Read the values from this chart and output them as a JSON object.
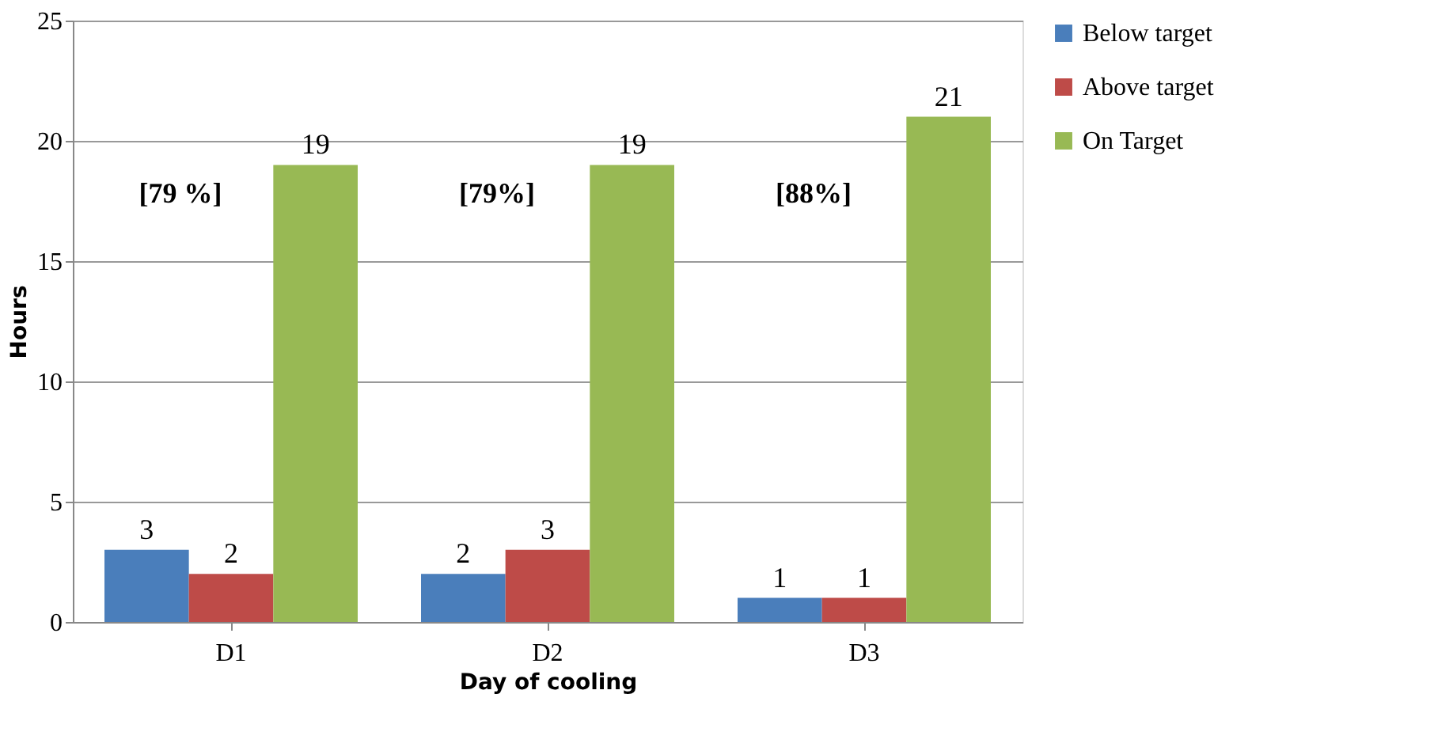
{
  "chart_data": {
    "type": "bar",
    "xlabel": "Day of cooling",
    "ylabel": "Hours",
    "categories": [
      "D1",
      "D2",
      "D3"
    ],
    "series": [
      {
        "name": "Below target",
        "color": "#4a7ebb",
        "values": [
          3,
          2,
          1
        ]
      },
      {
        "name": "Above target",
        "color": "#be4b48",
        "values": [
          2,
          3,
          1
        ]
      },
      {
        "name": "On Target",
        "color": "#98b954",
        "values": [
          19,
          19,
          21
        ]
      }
    ],
    "ylim": [
      0,
      25
    ],
    "yticks": [
      0,
      5,
      10,
      15,
      20,
      25
    ],
    "grid": "y",
    "legend": "right",
    "data_labels": true,
    "annotations": [
      "[79 %]",
      "[79%]",
      "[88%]"
    ]
  }
}
